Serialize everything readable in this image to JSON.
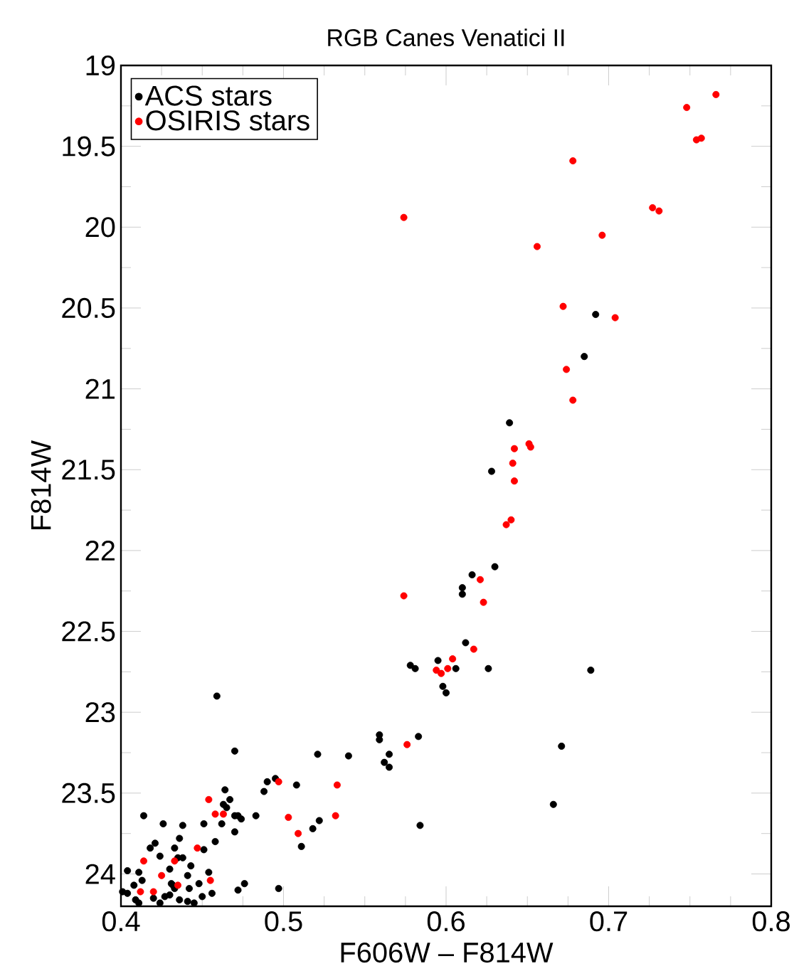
{
  "chart_data": {
    "type": "scatter",
    "title": "RGB Canes Venatici II",
    "xlabel": "F606W – F814W",
    "ylabel": "F814W",
    "xlim": [
      0.4,
      0.8
    ],
    "xticks": [
      0.4,
      0.5,
      0.6,
      0.7,
      0.8
    ],
    "ylim": [
      24.2,
      19
    ],
    "yticks": [
      19,
      19.5,
      20,
      20.5,
      21,
      21.5,
      22,
      22.5,
      23,
      23.5,
      24
    ],
    "marker": "circle",
    "legend": "top left",
    "series": [
      {
        "name": "ACS stars",
        "color": "#000000",
        "x": [
          0.692,
          0.685,
          0.639,
          0.628,
          0.63,
          0.616,
          0.61,
          0.61,
          0.612,
          0.595,
          0.578,
          0.581,
          0.606,
          0.626,
          0.689,
          0.598,
          0.6,
          0.559,
          0.559,
          0.583,
          0.671,
          0.54,
          0.565,
          0.562,
          0.565,
          0.666,
          0.584,
          0.459,
          0.47,
          0.521,
          0.49,
          0.495,
          0.488,
          0.508,
          0.464,
          0.467,
          0.463,
          0.465,
          0.414,
          0.47,
          0.474,
          0.472,
          0.483,
          0.462,
          0.451,
          0.438,
          0.426,
          0.522,
          0.518,
          0.511,
          0.47,
          0.436,
          0.418,
          0.421,
          0.458,
          0.451,
          0.433,
          0.424,
          0.435,
          0.438,
          0.443,
          0.404,
          0.411,
          0.43,
          0.441,
          0.454,
          0.413,
          0.408,
          0.431,
          0.432,
          0.433,
          0.448,
          0.442,
          0.476,
          0.472,
          0.497,
          0.404,
          0.401,
          0.409,
          0.42,
          0.427,
          0.43,
          0.436,
          0.441,
          0.45,
          0.456,
          0.411,
          0.445,
          0.424
        ],
        "values": [
          20.54,
          20.8,
          21.21,
          21.51,
          22.1,
          22.15,
          22.23,
          22.27,
          22.57,
          22.68,
          22.71,
          22.73,
          22.73,
          22.73,
          22.74,
          22.84,
          22.88,
          23.14,
          23.17,
          23.15,
          23.21,
          23.27,
          23.26,
          23.31,
          23.34,
          23.57,
          23.7,
          22.9,
          23.24,
          23.26,
          23.43,
          23.41,
          23.49,
          23.45,
          23.48,
          23.54,
          23.57,
          23.59,
          23.64,
          23.64,
          23.66,
          23.64,
          23.64,
          23.69,
          23.69,
          23.7,
          23.69,
          23.67,
          23.72,
          23.83,
          23.74,
          23.78,
          23.84,
          23.81,
          23.8,
          23.85,
          23.84,
          23.89,
          23.9,
          23.9,
          23.95,
          23.98,
          23.99,
          23.97,
          24.01,
          23.99,
          24.04,
          24.07,
          24.06,
          24.07,
          24.09,
          24.06,
          24.09,
          24.06,
          24.1,
          24.09,
          24.12,
          24.11,
          24.16,
          24.15,
          24.14,
          24.13,
          24.16,
          24.17,
          24.14,
          24.12,
          24.18,
          24.18,
          24.18
        ]
      },
      {
        "name": "OSIRIS stars",
        "color": "#ff0000",
        "x": [
          0.766,
          0.748,
          0.754,
          0.757,
          0.678,
          0.727,
          0.731,
          0.696,
          0.672,
          0.704,
          0.674,
          0.574,
          0.656,
          0.678,
          0.651,
          0.652,
          0.642,
          0.641,
          0.642,
          0.64,
          0.637,
          0.621,
          0.574,
          0.623,
          0.617,
          0.604,
          0.594,
          0.601,
          0.597,
          0.576,
          0.533,
          0.532,
          0.497,
          0.454,
          0.458,
          0.463,
          0.503,
          0.509,
          0.447,
          0.414,
          0.425,
          0.433,
          0.455,
          0.412,
          0.42,
          0.435
        ],
        "values": [
          19.18,
          19.26,
          19.46,
          19.45,
          19.59,
          19.88,
          19.9,
          20.05,
          20.49,
          20.56,
          20.88,
          19.94,
          20.12,
          21.07,
          21.34,
          21.36,
          21.37,
          21.46,
          21.57,
          21.81,
          21.84,
          22.18,
          22.28,
          22.32,
          22.61,
          22.67,
          22.74,
          22.73,
          22.76,
          23.2,
          23.45,
          23.64,
          23.43,
          23.54,
          23.63,
          23.63,
          23.65,
          23.75,
          23.84,
          23.92,
          24.01,
          23.92,
          24.04,
          24.11,
          24.11,
          24.07
        ]
      }
    ]
  }
}
